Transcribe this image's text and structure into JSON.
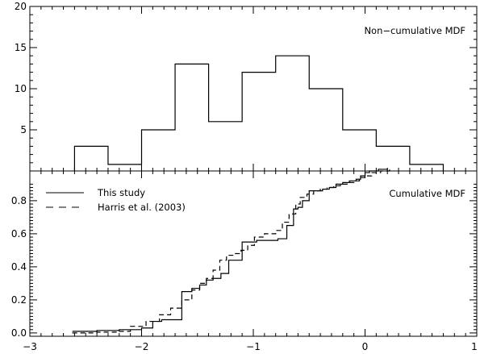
{
  "chart_data": [
    {
      "panel": "top",
      "type": "step",
      "annotation": "Non−cumulative MDF",
      "xlim": [
        -3,
        1
      ],
      "ylim": [
        0,
        20
      ],
      "yticks": [
        5,
        10,
        15,
        20
      ],
      "grid": false,
      "series": [
        {
          "style": "solid",
          "bins": [
            {
              "x0": -2.6,
              "x1": -2.3,
              "y": 3
            },
            {
              "x0": -2.3,
              "x1": -2.0,
              "y": 0.8
            },
            {
              "x0": -2.0,
              "x1": -1.7,
              "y": 5
            },
            {
              "x0": -1.7,
              "x1": -1.4,
              "y": 13
            },
            {
              "x0": -1.4,
              "x1": -1.1,
              "y": 6
            },
            {
              "x0": -1.1,
              "x1": -0.8,
              "y": 12
            },
            {
              "x0": -0.8,
              "x1": -0.5,
              "y": 14
            },
            {
              "x0": -0.5,
              "x1": -0.2,
              "y": 10
            },
            {
              "x0": -0.2,
              "x1": 0.1,
              "y": 5
            },
            {
              "x0": 0.1,
              "x1": 0.4,
              "y": 3
            },
            {
              "x0": 0.4,
              "x1": 0.7,
              "y": 0.8
            }
          ]
        }
      ]
    },
    {
      "panel": "bottom",
      "type": "step",
      "annotation": "Cumulative MDF",
      "xlim": [
        -3,
        1
      ],
      "ylim": [
        -0.02,
        0.98
      ],
      "xticks": [
        -3,
        -2,
        -1,
        0,
        1
      ],
      "xtick_labels": [
        "−3",
        "−2",
        "−1",
        "0",
        "1"
      ],
      "yticks": [
        0.0,
        0.2,
        0.4,
        0.6,
        0.8
      ],
      "ytick_labels": [
        "0.0",
        "0.2",
        "0.4",
        "0.6",
        "0.8"
      ],
      "grid": false,
      "legend": "top-left",
      "series": [
        {
          "name": "This study",
          "style": "solid",
          "x": [
            -2.62,
            -2.4,
            -2.2,
            -2.0,
            -1.9,
            -1.82,
            -1.72,
            -1.64,
            -1.55,
            -1.48,
            -1.42,
            -1.36,
            -1.29,
            -1.22,
            -1.16,
            -1.1,
            -1.03,
            -0.97,
            -0.88,
            -0.78,
            -0.7,
            -0.64,
            -0.6,
            -0.56,
            -0.5,
            -0.44,
            -0.38,
            -0.32,
            -0.26,
            -0.2,
            -0.14,
            -0.08,
            -0.04,
            0.0,
            0.04,
            0.12,
            0.2
          ],
          "y": [
            0.01,
            0.015,
            0.02,
            0.03,
            0.07,
            0.08,
            0.08,
            0.25,
            0.27,
            0.29,
            0.32,
            0.33,
            0.36,
            0.44,
            0.44,
            0.55,
            0.55,
            0.56,
            0.56,
            0.57,
            0.65,
            0.75,
            0.76,
            0.8,
            0.86,
            0.86,
            0.87,
            0.88,
            0.9,
            0.91,
            0.92,
            0.93,
            0.95,
            0.97,
            0.98,
            0.99,
            0.995
          ]
        },
        {
          "name": "Harris et al. (2003)",
          "style": "dashed",
          "x": [
            -2.62,
            -2.4,
            -2.2,
            -2.1,
            -1.96,
            -1.84,
            -1.74,
            -1.64,
            -1.55,
            -1.48,
            -1.42,
            -1.36,
            -1.3,
            -1.24,
            -1.17,
            -1.11,
            -1.05,
            -0.99,
            -0.9,
            -0.8,
            -0.74,
            -0.68,
            -0.62,
            -0.58,
            -0.52,
            -0.46,
            -0.4,
            -0.34,
            -0.28,
            -0.22,
            -0.16,
            -0.1,
            -0.05,
            0.0,
            0.06,
            0.14,
            0.22
          ],
          "y": [
            0.0,
            0.005,
            0.01,
            0.04,
            0.07,
            0.11,
            0.15,
            0.2,
            0.26,
            0.3,
            0.33,
            0.38,
            0.44,
            0.47,
            0.48,
            0.5,
            0.53,
            0.58,
            0.6,
            0.62,
            0.67,
            0.72,
            0.78,
            0.82,
            0.84,
            0.86,
            0.87,
            0.88,
            0.89,
            0.9,
            0.91,
            0.92,
            0.94,
            0.95,
            0.97,
            0.98,
            0.99
          ]
        }
      ]
    }
  ]
}
